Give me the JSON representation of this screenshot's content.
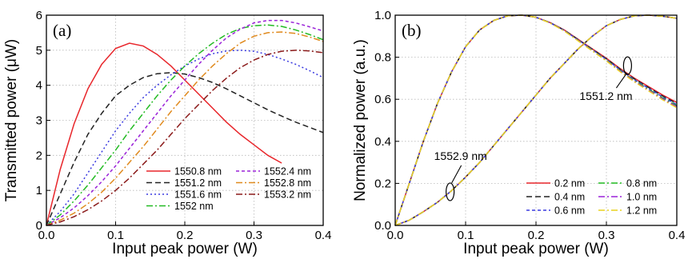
{
  "chart_data": [
    {
      "type": "line",
      "panel_label": "(a)",
      "xlabel": "Input peak power (W)",
      "ylabel": "Transmitted power (μW)",
      "xlim": [
        0,
        0.4
      ],
      "ylim": [
        0,
        6
      ],
      "xticks": [
        "0.0",
        "0.1",
        "0.2",
        "0.3",
        "0.4"
      ],
      "yticks": [
        "0",
        "1",
        "2",
        "3",
        "4",
        "5",
        "6"
      ],
      "grid": true,
      "legend": "bottom-right, two columns",
      "series": [
        {
          "name": "1550.8 nm",
          "color": "#e8262b",
          "dash": "solid",
          "x": [
            0,
            0.02,
            0.04,
            0.06,
            0.08,
            0.1,
            0.12,
            0.14,
            0.16,
            0.18,
            0.2,
            0.22,
            0.24,
            0.26,
            0.28,
            0.3,
            0.32,
            0.34
          ],
          "y": [
            0,
            1.6,
            2.9,
            3.9,
            4.6,
            5.05,
            5.2,
            5.12,
            4.88,
            4.55,
            4.15,
            3.75,
            3.35,
            2.95,
            2.6,
            2.3,
            2.0,
            1.78
          ]
        },
        {
          "name": "1551.2 nm",
          "color": "#222222",
          "dash": "dash",
          "x": [
            0,
            0.02,
            0.04,
            0.06,
            0.08,
            0.1,
            0.12,
            0.14,
            0.16,
            0.18,
            0.2,
            0.22,
            0.24,
            0.26,
            0.28,
            0.3,
            0.32,
            0.34,
            0.36,
            0.38,
            0.4
          ],
          "y": [
            0,
            0.9,
            1.8,
            2.6,
            3.2,
            3.7,
            4.0,
            4.22,
            4.33,
            4.36,
            4.32,
            4.22,
            4.08,
            3.9,
            3.7,
            3.5,
            3.3,
            3.12,
            2.95,
            2.8,
            2.65
          ]
        },
        {
          "name": "1551.6 nm",
          "color": "#3a3ae0",
          "dash": "dot",
          "x": [
            0,
            0.02,
            0.04,
            0.06,
            0.08,
            0.1,
            0.12,
            0.14,
            0.16,
            0.18,
            0.2,
            0.22,
            0.24,
            0.26,
            0.28,
            0.3,
            0.32,
            0.34,
            0.36,
            0.38,
            0.4
          ],
          "y": [
            0,
            0.4,
            0.9,
            1.5,
            2.1,
            2.7,
            3.2,
            3.65,
            4.0,
            4.3,
            4.55,
            4.75,
            4.9,
            4.98,
            5.0,
            4.97,
            4.88,
            4.75,
            4.6,
            4.42,
            4.22
          ]
        },
        {
          "name": "1552 nm",
          "color": "#22bb22",
          "dash": "dashdot",
          "x": [
            0,
            0.02,
            0.04,
            0.06,
            0.08,
            0.1,
            0.12,
            0.14,
            0.16,
            0.18,
            0.2,
            0.22,
            0.24,
            0.26,
            0.28,
            0.3,
            0.32,
            0.34,
            0.36,
            0.38,
            0.4
          ],
          "y": [
            0,
            0.3,
            0.7,
            1.15,
            1.65,
            2.15,
            2.7,
            3.2,
            3.7,
            4.15,
            4.55,
            4.9,
            5.2,
            5.45,
            5.62,
            5.7,
            5.72,
            5.68,
            5.58,
            5.45,
            5.3
          ]
        },
        {
          "name": "1552.4 nm",
          "color": "#9a22d8",
          "dash": "shortdash",
          "x": [
            0,
            0.02,
            0.04,
            0.06,
            0.08,
            0.1,
            0.12,
            0.14,
            0.16,
            0.18,
            0.2,
            0.22,
            0.24,
            0.26,
            0.28,
            0.3,
            0.32,
            0.34,
            0.36,
            0.38,
            0.4
          ],
          "y": [
            0,
            0.22,
            0.5,
            0.85,
            1.25,
            1.7,
            2.2,
            2.7,
            3.2,
            3.7,
            4.15,
            4.6,
            5.0,
            5.35,
            5.6,
            5.78,
            5.85,
            5.85,
            5.78,
            5.67,
            5.55
          ]
        },
        {
          "name": "1552.8 nm",
          "color": "#e08a1e",
          "dash": "dashdot",
          "x": [
            0,
            0.02,
            0.04,
            0.06,
            0.08,
            0.1,
            0.12,
            0.14,
            0.16,
            0.18,
            0.2,
            0.22,
            0.24,
            0.26,
            0.28,
            0.3,
            0.32,
            0.34,
            0.36,
            0.38,
            0.4
          ],
          "y": [
            0,
            0.15,
            0.35,
            0.62,
            0.95,
            1.35,
            1.8,
            2.25,
            2.75,
            3.25,
            3.7,
            4.15,
            4.55,
            4.9,
            5.2,
            5.4,
            5.5,
            5.52,
            5.48,
            5.38,
            5.25
          ]
        },
        {
          "name": "1553.2 nm",
          "color": "#8b1a1a",
          "dash": "dashdot",
          "x": [
            0,
            0.02,
            0.04,
            0.06,
            0.08,
            0.1,
            0.12,
            0.14,
            0.16,
            0.18,
            0.2,
            0.22,
            0.24,
            0.26,
            0.28,
            0.3,
            0.32,
            0.34,
            0.36,
            0.38,
            0.4
          ],
          "y": [
            0,
            0.1,
            0.25,
            0.45,
            0.7,
            1.0,
            1.35,
            1.75,
            2.15,
            2.6,
            3.05,
            3.45,
            3.85,
            4.2,
            4.5,
            4.72,
            4.88,
            4.97,
            5.0,
            4.98,
            4.93
          ]
        }
      ]
    },
    {
      "type": "line",
      "panel_label": "(b)",
      "xlabel": "Input peak power (W)",
      "ylabel": "Normalized power (a.u.)",
      "xlim": [
        0,
        0.4
      ],
      "ylim": [
        0,
        1.0
      ],
      "xticks": [
        "0.0",
        "0.1",
        "0.2",
        "0.3",
        "0.4"
      ],
      "yticks": [
        "0.0",
        "0.2",
        "0.4",
        "0.6",
        "0.8",
        "1.0"
      ],
      "grid": true,
      "legend": "bottom-right, two columns",
      "annotations": [
        {
          "text": "1551.2 nm",
          "x": 0.33,
          "y": 0.76
        },
        {
          "text": "1552.9 nm",
          "x": 0.078,
          "y": 0.16
        }
      ],
      "curve_1551_2_nm": {
        "x": [
          0,
          0.02,
          0.04,
          0.06,
          0.08,
          0.1,
          0.12,
          0.14,
          0.16,
          0.18,
          0.2,
          0.22,
          0.24,
          0.26,
          0.28,
          0.3,
          0.32,
          0.34,
          0.36,
          0.38,
          0.4
        ],
        "y": [
          0,
          0.2,
          0.4,
          0.58,
          0.73,
          0.85,
          0.93,
          0.975,
          0.997,
          1.0,
          0.99,
          0.965,
          0.93,
          0.885,
          0.84,
          0.795,
          0.745,
          0.7,
          0.66,
          0.62,
          0.585
        ]
      },
      "curve_1552_9_nm": {
        "x": [
          0,
          0.02,
          0.04,
          0.06,
          0.08,
          0.1,
          0.12,
          0.14,
          0.16,
          0.18,
          0.2,
          0.22,
          0.24,
          0.26,
          0.28,
          0.3,
          0.32,
          0.34,
          0.36,
          0.38,
          0.4
        ],
        "y": [
          0,
          0.025,
          0.065,
          0.11,
          0.165,
          0.23,
          0.3,
          0.38,
          0.46,
          0.54,
          0.62,
          0.7,
          0.77,
          0.84,
          0.9,
          0.95,
          0.98,
          0.997,
          1.0,
          0.995,
          0.985
        ]
      },
      "series": [
        {
          "name": "0.2 nm",
          "color": "#e8262b",
          "dash": "solid",
          "tail_offset": 0.0
        },
        {
          "name": "0.4 nm",
          "color": "#222222",
          "dash": "dash",
          "tail_offset": -0.005
        },
        {
          "name": "0.6 nm",
          "color": "#3a3ae0",
          "dash": "shortdash",
          "tail_offset": -0.01
        },
        {
          "name": "0.8 nm",
          "color": "#22bb22",
          "dash": "dashdot",
          "tail_offset": -0.015
        },
        {
          "name": "1.0 nm",
          "color": "#9a22d8",
          "dash": "dashdot",
          "tail_offset": -0.02
        },
        {
          "name": "1.2 nm",
          "color": "#e8d21e",
          "dash": "dashdot",
          "tail_offset": -0.025
        }
      ]
    }
  ]
}
